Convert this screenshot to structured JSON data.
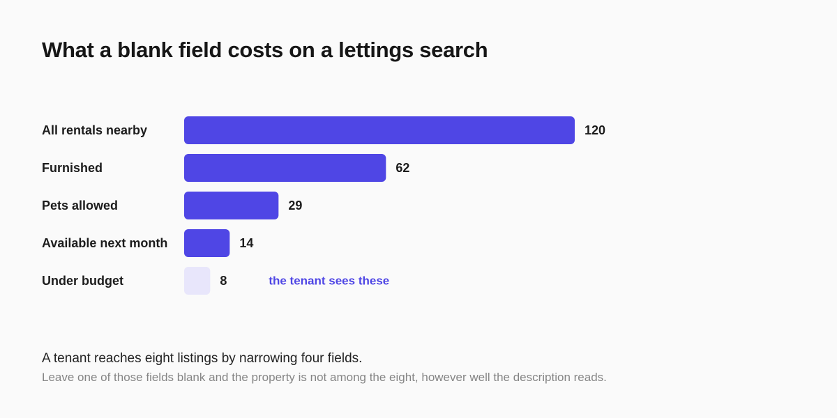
{
  "colors": {
    "bar": "#4f46e5",
    "highlight_bar": "#e8e6fb",
    "annotation": "#4f46e5"
  },
  "chart_data": {
    "type": "bar",
    "orientation": "horizontal",
    "title": "What a blank field costs on a lettings search",
    "categories": [
      "All rentals nearby",
      "Furnished",
      "Pets allowed",
      "Available next month",
      "Under budget"
    ],
    "values": [
      120,
      62,
      29,
      14,
      8
    ],
    "xlim": [
      0,
      120
    ],
    "grid": false,
    "highlight_index": 4,
    "annotation": {
      "text": "the tenant sees these",
      "target_index": 4
    }
  },
  "caption": "A tenant reaches eight listings by narrowing four fields.",
  "subcaption": "Leave one of those fields blank and the property is not among the eight, however well the description reads."
}
